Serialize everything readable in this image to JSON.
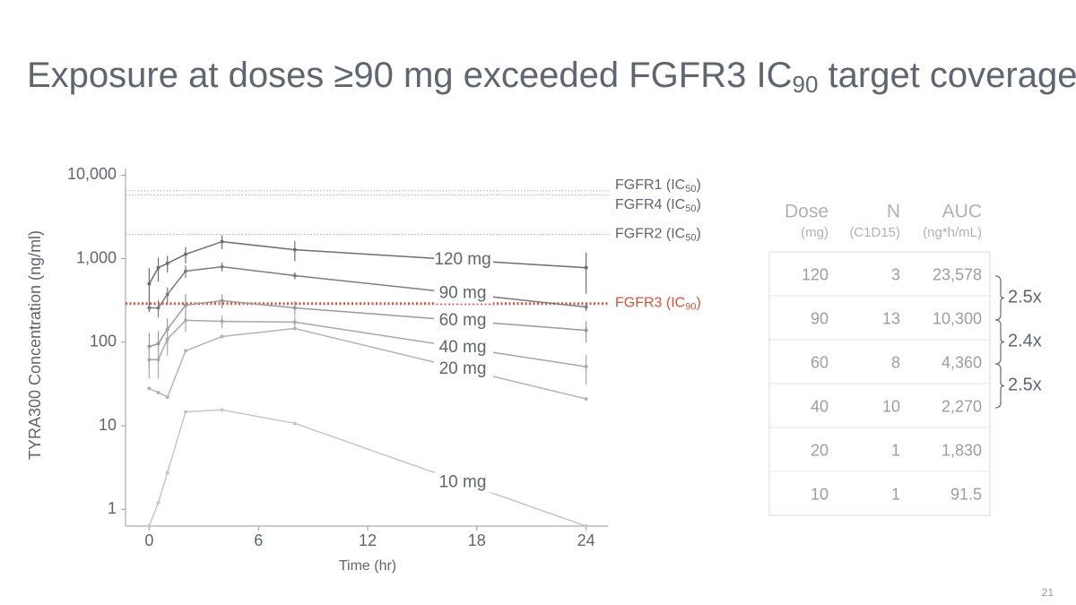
{
  "title": {
    "text": "Exposure at doses ≥90 mg exceeded FGFR3 IC",
    "sub": "90",
    "suffix": " target coverage"
  },
  "chart_data": {
    "type": "line",
    "x_label": "Time (hr)",
    "y_label": "TYRA300 Concentration (ng/ml)",
    "x": [
      0,
      0.5,
      1,
      2,
      4,
      8,
      24
    ],
    "xlim": [
      -1.3,
      25.2
    ],
    "xticks": [
      0,
      6,
      12,
      18,
      24
    ],
    "ylim": [
      0.63,
      12000
    ],
    "log_y": true,
    "yticks": [
      1,
      10,
      100,
      {
        "value": 1000,
        "label": "1,000"
      },
      {
        "value": 10000,
        "label": "10,000"
      }
    ],
    "series": [
      {
        "name": "120 mg",
        "color": "#6e6e6e",
        "values": [
          500,
          780,
          880,
          1130,
          1600,
          1280,
          780
        ],
        "errors": [
          270,
          250,
          200,
          250,
          300,
          350,
          400
        ]
      },
      {
        "name": "90 mg",
        "color": "#7d7d7d",
        "values": [
          258,
          258,
          373,
          710,
          800,
          627,
          264
        ],
        "errors": [
          null,
          60,
          80,
          120,
          100,
          60,
          30
        ]
      },
      {
        "name": "60 mg",
        "color": "#999999",
        "values": [
          89,
          96,
          143,
          278,
          314,
          258,
          139
        ],
        "errors": [
          40,
          40,
          50,
          100,
          60,
          50,
          40
        ]
      },
      {
        "name": "40 mg",
        "color": "#a8a8a8",
        "values": [
          62,
          62,
          109,
          183,
          178,
          174,
          51
        ],
        "errors": [
          25,
          25,
          40,
          50,
          30,
          30,
          20
        ]
      },
      {
        "name": "20 mg",
        "color": "#b4b4b4",
        "values": [
          28,
          25,
          22,
          79,
          117,
          146,
          21
        ]
      },
      {
        "name": "10 mg",
        "color": "#c6c6c6",
        "values": [
          0.63,
          1.2,
          2.75,
          14.7,
          15.5,
          10.7,
          0.63
        ]
      }
    ],
    "reference_lines": [
      {
        "text": "FGFR1 (IC",
        "sub": "50",
        "suffix": ")",
        "value": 6500,
        "color": "#b8b8b8"
      },
      {
        "text": "FGFR4 (IC",
        "sub": "50",
        "suffix": ")",
        "value": 5800,
        "color": "#b8b8b8"
      },
      {
        "text": "FGFR2 (IC",
        "sub": "50",
        "suffix": ")",
        "value": 1950,
        "color": "#b8b8b8"
      },
      {
        "text": "FGFR3 (IC",
        "sub": "90",
        "suffix": ")",
        "value": 290,
        "color": "#d9533c"
      }
    ]
  },
  "table": {
    "header": [
      [
        "Dose",
        "(mg)"
      ],
      [
        "N",
        "(C1D15)"
      ],
      [
        "AUC",
        "(ng*h/mL)"
      ]
    ],
    "rows": [
      [
        "120",
        "3",
        "23,578"
      ],
      [
        "90",
        "13",
        "10,300"
      ],
      [
        "60",
        "8",
        "4,360"
      ],
      [
        "40",
        "10",
        "2,270"
      ],
      [
        "20",
        "1",
        "1,830"
      ],
      [
        "10",
        "1",
        "91.5"
      ]
    ],
    "ratios": [
      "2.5x",
      "2.4x",
      "2.5x"
    ]
  },
  "page_number": "21"
}
